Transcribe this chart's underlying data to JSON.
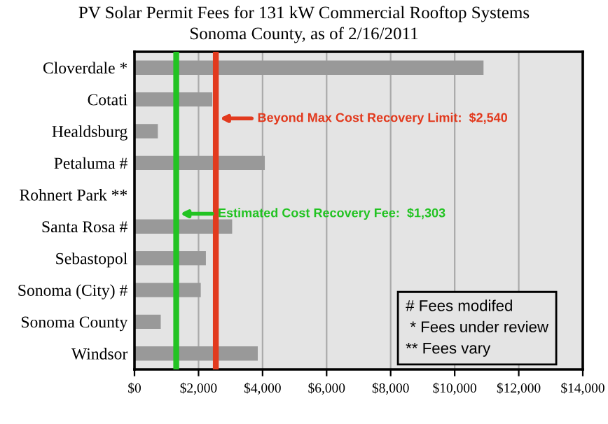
{
  "chart_data": {
    "type": "bar",
    "orientation": "horizontal",
    "title": "PV Solar Permit Fees for 131 kW Commercial Rooftop Systems",
    "subtitle": "Sonoma County, as of 2/16/2011",
    "categories": [
      "Cloverdale *",
      "Cotati",
      "Healdsburg",
      "Petaluma #",
      "Rohnert Park **",
      "Santa Rosa #",
      "Sebastopol",
      "Sonoma (City) #",
      "Sonoma County",
      "Windsor"
    ],
    "values": [
      10900,
      2430,
      730,
      4070,
      null,
      3050,
      2230,
      2070,
      820,
      3850
    ],
    "color": "#999999",
    "xlim": [
      0,
      14000
    ],
    "xticks": [
      {
        "value": 0,
        "label": "$0"
      },
      {
        "value": 2000,
        "label": "$2,000"
      },
      {
        "value": 4000,
        "label": "$4,000"
      },
      {
        "value": 6000,
        "label": "$6,000"
      },
      {
        "value": 8000,
        "label": "$8,000"
      },
      {
        "value": 10000,
        "label": "$10,000"
      },
      {
        "value": 12000,
        "label": "$12,000"
      },
      {
        "value": 14000,
        "label": "$14,000"
      }
    ],
    "grid": "x",
    "ref_lines": [
      {
        "axis": "x",
        "value": 2540,
        "label": "Beyond Max Cost Recovery Limit:  $2,540",
        "color": "#e23a1e"
      },
      {
        "axis": "x",
        "value": 1303,
        "label": "Estimated Cost Recovery Fee:  $1,303",
        "color": "#22c322"
      }
    ],
    "annotations": [
      "# Fees modifed\n * Fees under review\n** Fees vary"
    ]
  }
}
